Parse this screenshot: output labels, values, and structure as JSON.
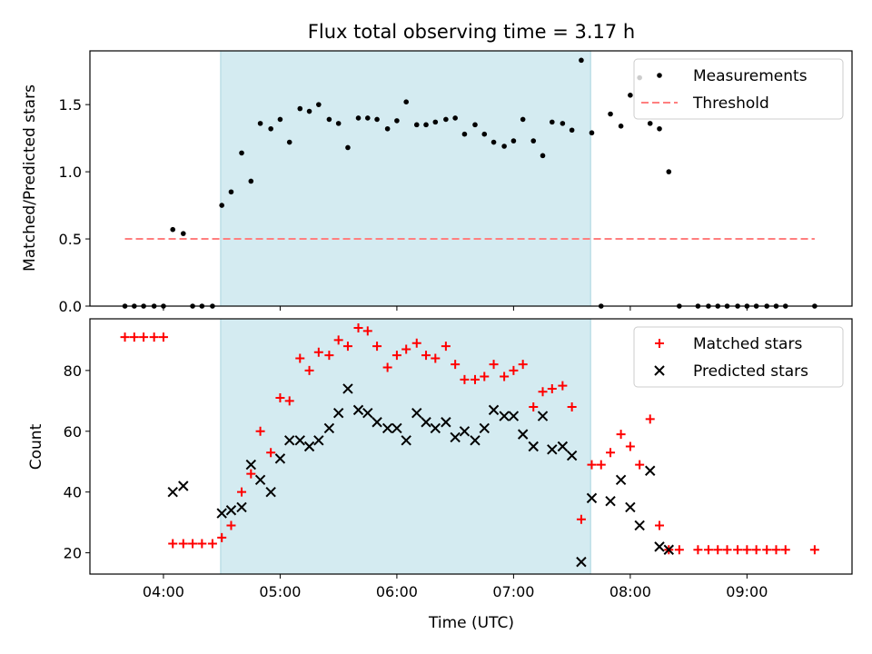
{
  "chart_data": [
    {
      "type": "scatter",
      "title": "Flux total observing time = 3.17 h",
      "xlabel": "",
      "ylabel": "Matched/Predicted stars",
      "ylim": [
        0,
        1.9
      ],
      "yticks": [
        0.0,
        0.5,
        1.0,
        1.5
      ],
      "ytick_labels": [
        "0.0",
        "0.5",
        "1.0",
        "1.5"
      ],
      "xlim_hours": [
        3.37,
        9.9
      ],
      "xticks_hours": [
        4,
        5,
        6,
        7,
        8,
        9
      ],
      "shaded_span_hours": [
        4.49,
        7.66
      ],
      "shaded_color": "#d4ebf1",
      "legend_position": "top-right",
      "series": [
        {
          "name": "Measurements",
          "marker": "dot",
          "color": "#000000",
          "x": [
            3.67,
            3.75,
            3.83,
            3.92,
            4.0,
            4.08,
            4.17,
            4.25,
            4.33,
            4.42,
            4.5,
            4.58,
            4.67,
            4.75,
            4.83,
            4.92,
            5.0,
            5.08,
            5.17,
            5.25,
            5.33,
            5.42,
            5.5,
            5.58,
            5.67,
            5.75,
            5.83,
            5.92,
            6.0,
            6.08,
            6.17,
            6.25,
            6.33,
            6.42,
            6.5,
            6.58,
            6.67,
            6.75,
            6.83,
            6.92,
            7.0,
            7.08,
            7.17,
            7.25,
            7.33,
            7.42,
            7.5,
            7.58,
            7.67,
            7.75,
            7.83,
            7.92,
            8.0,
            8.08,
            8.17,
            8.25,
            8.33,
            8.42,
            8.58,
            8.67,
            8.75,
            8.83,
            8.92,
            9.0,
            9.08,
            9.17,
            9.25,
            9.33,
            9.58
          ],
          "y": [
            0,
            0,
            0,
            0,
            0,
            0.57,
            0.54,
            0,
            0,
            0,
            0.75,
            0.85,
            1.14,
            0.93,
            1.36,
            1.32,
            1.39,
            1.22,
            1.47,
            1.45,
            1.5,
            1.39,
            1.36,
            1.18,
            1.4,
            1.4,
            1.39,
            1.32,
            1.38,
            1.52,
            1.35,
            1.35,
            1.37,
            1.39,
            1.4,
            1.28,
            1.35,
            1.28,
            1.22,
            1.19,
            1.23,
            1.39,
            1.23,
            1.12,
            1.37,
            1.36,
            1.31,
            1.83,
            1.29,
            0,
            1.43,
            1.34,
            1.57,
            1.7,
            1.36,
            1.32,
            1.0,
            0,
            0,
            0,
            0,
            0,
            0,
            0,
            0,
            0,
            0,
            0,
            0
          ]
        },
        {
          "name": "Threshold",
          "marker": "dashed-line",
          "color": "#ff7f7f",
          "x": [
            3.67,
            9.58
          ],
          "y": [
            0.5,
            0.5
          ]
        }
      ]
    },
    {
      "type": "scatter",
      "title": "",
      "xlabel": "Time (UTC)",
      "ylabel": "Count",
      "ylim": [
        13,
        97
      ],
      "yticks": [
        20,
        40,
        60,
        80
      ],
      "ytick_labels": [
        "20",
        "40",
        "60",
        "80"
      ],
      "xlim_hours": [
        3.37,
        9.9
      ],
      "xticks_hours": [
        4,
        5,
        6,
        7,
        8,
        9
      ],
      "xtick_labels": [
        "04:00",
        "05:00",
        "06:00",
        "07:00",
        "08:00",
        "09:00"
      ],
      "shaded_span_hours": [
        4.49,
        7.66
      ],
      "shaded_color": "#d4ebf1",
      "legend_position": "top-right",
      "series": [
        {
          "name": "Matched stars",
          "marker": "plus",
          "color": "#ff0000",
          "x": [
            3.67,
            3.75,
            3.83,
            3.92,
            4.0,
            4.08,
            4.17,
            4.25,
            4.33,
            4.42,
            4.5,
            4.58,
            4.67,
            4.75,
            4.83,
            4.92,
            5.0,
            5.08,
            5.17,
            5.25,
            5.33,
            5.42,
            5.5,
            5.58,
            5.67,
            5.75,
            5.83,
            5.92,
            6.0,
            6.08,
            6.17,
            6.25,
            6.33,
            6.42,
            6.5,
            6.58,
            6.67,
            6.75,
            6.83,
            6.92,
            7.0,
            7.08,
            7.17,
            7.25,
            7.33,
            7.42,
            7.5,
            7.58,
            7.67,
            7.75,
            7.83,
            7.92,
            8.0,
            8.08,
            8.17,
            8.25,
            8.33,
            8.42,
            8.58,
            8.67,
            8.75,
            8.83,
            8.92,
            9.0,
            9.08,
            9.17,
            9.25,
            9.33,
            9.58
          ],
          "y": [
            91,
            91,
            91,
            91,
            91,
            23,
            23,
            23,
            23,
            23,
            25,
            29,
            40,
            46,
            60,
            53,
            71,
            70,
            84,
            80,
            86,
            85,
            90,
            88,
            94,
            93,
            88,
            81,
            85,
            87,
            89,
            85,
            84,
            88,
            82,
            77,
            77,
            78,
            82,
            78,
            80,
            82,
            68,
            73,
            74,
            75,
            68,
            31,
            49,
            49,
            53,
            59,
            55,
            49,
            64,
            29,
            21,
            21,
            21,
            21,
            21,
            21,
            21,
            21,
            21,
            21,
            21,
            21,
            21
          ]
        },
        {
          "name": "Predicted stars",
          "marker": "x",
          "color": "#000000",
          "x": [
            4.08,
            4.17,
            4.5,
            4.58,
            4.67,
            4.75,
            4.83,
            4.92,
            5.0,
            5.08,
            5.17,
            5.25,
            5.33,
            5.42,
            5.5,
            5.58,
            5.67,
            5.75,
            5.83,
            5.92,
            6.0,
            6.08,
            6.17,
            6.25,
            6.33,
            6.42,
            6.5,
            6.58,
            6.67,
            6.75,
            6.83,
            6.92,
            7.0,
            7.08,
            7.17,
            7.25,
            7.33,
            7.42,
            7.5,
            7.58,
            7.67,
            7.83,
            7.92,
            8.0,
            8.08,
            8.17,
            8.25,
            8.33
          ],
          "y": [
            40,
            42,
            33,
            34,
            35,
            49,
            44,
            40,
            51,
            57,
            57,
            55,
            57,
            61,
            66,
            74,
            67,
            66,
            63,
            61,
            61,
            57,
            66,
            63,
            61,
            63,
            58,
            60,
            57,
            61,
            67,
            65,
            65,
            59,
            55,
            65,
            54,
            55,
            52,
            17,
            38,
            37,
            44,
            35,
            29,
            47,
            22,
            21
          ]
        }
      ]
    }
  ]
}
